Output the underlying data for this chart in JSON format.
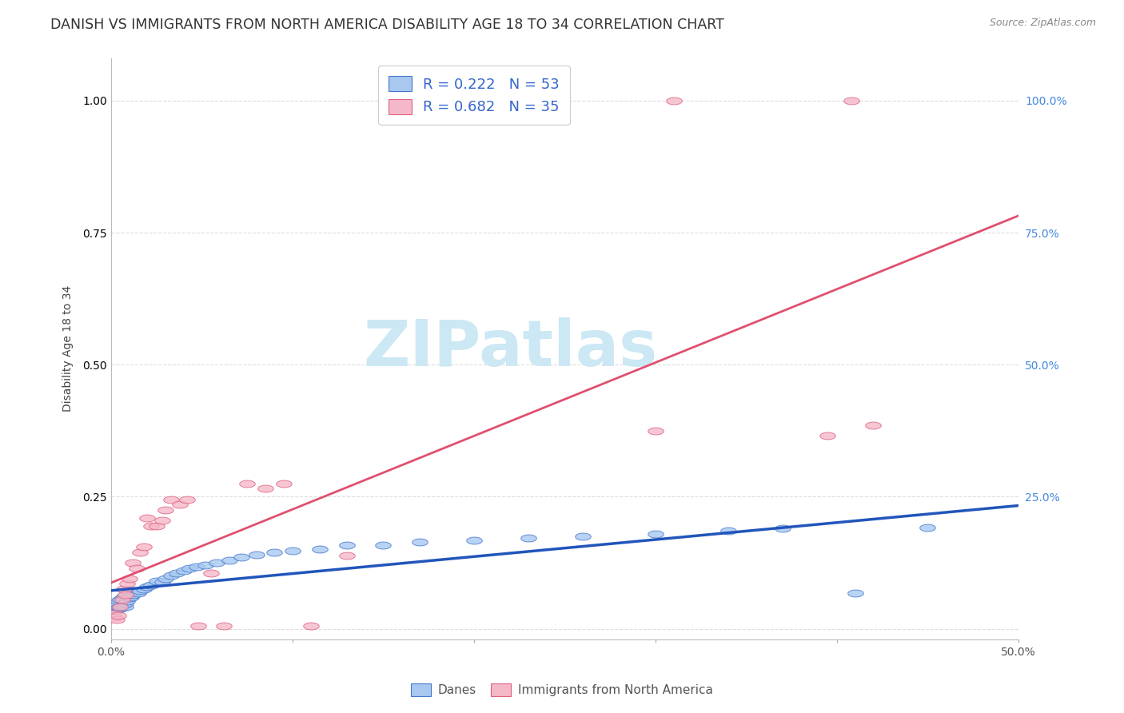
{
  "title": "DANISH VS IMMIGRANTS FROM NORTH AMERICA DISABILITY AGE 18 TO 34 CORRELATION CHART",
  "source": "Source: ZipAtlas.com",
  "ylabel": "Disability Age 18 to 34",
  "xlim": [
    0.0,
    0.5
  ],
  "ylim": [
    -0.02,
    1.08
  ],
  "danes_color": "#A8C8F0",
  "immigrants_color": "#F4B8C8",
  "danes_edge_color": "#4477CC",
  "immigrants_edge_color": "#E06080",
  "danes_line_color": "#2255BB",
  "immigrants_line_color": "#E05070",
  "legend_text_color": "#3366CC",
  "right_tick_color": "#4488DD",
  "danes_x": [
    0.001,
    0.002,
    0.002,
    0.003,
    0.003,
    0.004,
    0.004,
    0.005,
    0.005,
    0.006,
    0.006,
    0.007,
    0.007,
    0.008,
    0.008,
    0.009,
    0.01,
    0.01,
    0.011,
    0.012,
    0.013,
    0.015,
    0.016,
    0.018,
    0.02,
    0.022,
    0.025,
    0.028,
    0.03,
    0.033,
    0.036,
    0.04,
    0.043,
    0.047,
    0.052,
    0.058,
    0.065,
    0.072,
    0.08,
    0.09,
    0.1,
    0.115,
    0.13,
    0.15,
    0.17,
    0.2,
    0.23,
    0.26,
    0.3,
    0.34,
    0.37,
    0.41,
    0.45
  ],
  "danes_y": [
    0.045,
    0.038,
    0.042,
    0.035,
    0.048,
    0.04,
    0.052,
    0.038,
    0.055,
    0.042,
    0.058,
    0.045,
    0.062,
    0.042,
    0.048,
    0.052,
    0.058,
    0.065,
    0.06,
    0.065,
    0.07,
    0.068,
    0.072,
    0.075,
    0.08,
    0.082,
    0.09,
    0.088,
    0.095,
    0.1,
    0.105,
    0.11,
    0.115,
    0.118,
    0.12,
    0.125,
    0.13,
    0.135,
    0.14,
    0.145,
    0.148,
    0.15,
    0.158,
    0.158,
    0.165,
    0.168,
    0.172,
    0.175,
    0.18,
    0.185,
    0.19,
    0.068,
    0.192
  ],
  "immigrants_x": [
    0.001,
    0.002,
    0.003,
    0.004,
    0.005,
    0.006,
    0.007,
    0.008,
    0.009,
    0.01,
    0.012,
    0.014,
    0.016,
    0.018,
    0.02,
    0.022,
    0.025,
    0.028,
    0.03,
    0.033,
    0.038,
    0.042,
    0.048,
    0.055,
    0.062,
    0.075,
    0.085,
    0.095,
    0.11,
    0.13,
    0.3,
    0.31,
    0.395,
    0.408,
    0.42
  ],
  "immigrants_y": [
    0.028,
    0.022,
    0.018,
    0.025,
    0.042,
    0.055,
    0.075,
    0.065,
    0.085,
    0.095,
    0.125,
    0.115,
    0.145,
    0.155,
    0.21,
    0.195,
    0.195,
    0.205,
    0.225,
    0.245,
    0.235,
    0.245,
    0.005,
    0.105,
    0.005,
    0.275,
    0.265,
    0.275,
    0.005,
    0.138,
    0.375,
    1.0,
    0.365,
    1.0,
    0.385
  ],
  "danes_trend": [
    0.0,
    0.5,
    0.052,
    0.2
  ],
  "immigrants_trend": [
    0.0,
    0.5,
    -0.05,
    0.78
  ],
  "background_color": "#FFFFFF",
  "grid_color": "#DDDDDD",
  "watermark_text": "ZIPatlas",
  "watermark_color": "#CCE8F4",
  "title_fontsize": 12.5,
  "axis_label_fontsize": 10,
  "tick_fontsize": 10
}
